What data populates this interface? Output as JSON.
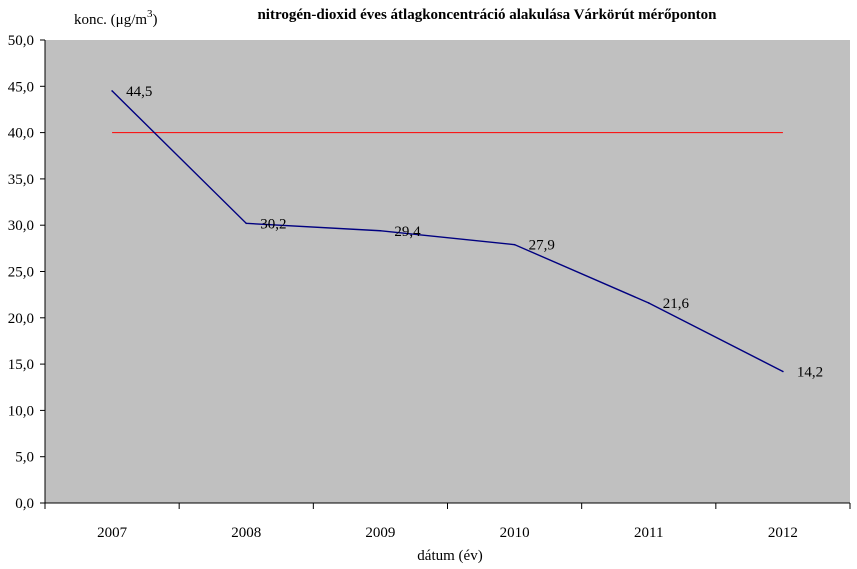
{
  "chart_data": {
    "type": "line",
    "title": "nitrogén-dioxid éves átlagkoncentráció alakulása Várkörút mérőponton",
    "ylabel": "konc. (μg/m",
    "ylabel_superscript": "3",
    "ylabel_suffix": ")",
    "xlabel": "dátum (év)",
    "categories": [
      "2007",
      "2008",
      "2009",
      "2010",
      "2011",
      "2012"
    ],
    "series": [
      {
        "values": [
          44.5,
          30.2,
          29.4,
          27.9,
          21.6,
          14.2
        ],
        "color": "#000080",
        "labels": [
          "44,5",
          "30,2",
          "29,4",
          "27,9",
          "21,6",
          "14,2"
        ]
      }
    ],
    "limit_line": {
      "value": 40.0,
      "color": "#ff0000"
    },
    "ylim": [
      0,
      50
    ],
    "ytick_step": 5,
    "yticks": [
      "0,0",
      "5,0",
      "10,0",
      "15,0",
      "20,0",
      "25,0",
      "30,0",
      "35,0",
      "40,0",
      "45,0",
      "50,0"
    ],
    "plot_background": "#c0c0c0",
    "grid": false,
    "legend": "none"
  }
}
